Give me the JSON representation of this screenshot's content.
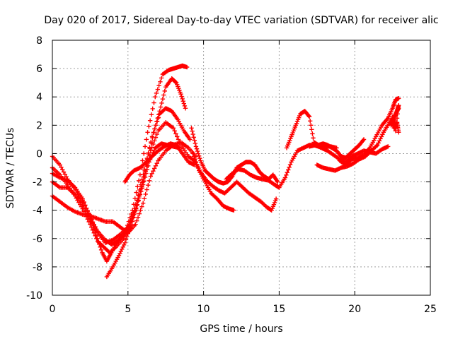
{
  "chart_data": {
    "type": "scatter",
    "title": "Day 020 of 2017, Sidereal Day-to-day VTEC variation (SDTVAR) for receiver alic",
    "xlabel": "GPS time / hours",
    "ylabel": "SDTVAR / TECUs",
    "xlim": [
      0,
      25
    ],
    "ylim": [
      -10,
      8
    ],
    "xticks": [
      0,
      5,
      10,
      15,
      20,
      25
    ],
    "yticks": [
      -10,
      -8,
      -6,
      -4,
      -2,
      0,
      2,
      4,
      6,
      8
    ],
    "grid": true,
    "marker": "+",
    "color": "#ff0000",
    "series": [
      {
        "x": [
          0.0,
          0.5,
          1.0,
          1.5,
          2.0,
          2.5,
          2.9,
          3.3,
          3.6,
          3.9,
          4.3,
          4.8,
          5.3,
          5.8,
          6.3,
          6.8,
          7.3,
          7.7,
          8.0,
          8.3,
          8.6,
          8.9
        ],
        "y": [
          -0.2,
          -0.8,
          -1.8,
          -2.5,
          -3.3,
          -4.4,
          -5.8,
          -7.0,
          -7.6,
          -7.0,
          -6.2,
          -5.6,
          -4.0,
          -1.5,
          1.5,
          4.0,
          5.6,
          5.9,
          6.0,
          6.1,
          6.2,
          6.1
        ]
      },
      {
        "x": [
          0.0,
          0.5,
          1.0,
          1.5,
          2.0,
          2.5,
          3.0,
          3.4,
          3.8,
          4.2,
          4.7,
          5.2,
          5.7,
          6.2,
          6.7,
          7.1,
          7.5,
          7.9,
          8.2,
          8.5,
          8.8
        ],
        "y": [
          -1.0,
          -1.5,
          -2.2,
          -3.0,
          -3.9,
          -5.0,
          -6.2,
          -6.6,
          -7.0,
          -6.6,
          -6.0,
          -5.1,
          -3.3,
          -0.8,
          1.5,
          3.0,
          4.7,
          5.3,
          5.0,
          4.2,
          3.2
        ]
      },
      {
        "x": [
          0.0,
          0.5,
          1.0,
          1.5,
          2.0,
          2.5,
          3.0,
          3.5,
          3.9,
          4.3,
          4.7,
          5.1,
          5.6,
          6.1,
          6.6,
          7.1,
          7.5,
          7.9,
          8.3,
          8.7,
          9.1
        ],
        "y": [
          -1.4,
          -1.7,
          -1.9,
          -2.4,
          -3.2,
          -4.5,
          -5.5,
          -6.1,
          -6.4,
          -6.2,
          -5.8,
          -5.0,
          -3.3,
          -1.1,
          1.2,
          2.8,
          3.2,
          3.0,
          2.4,
          1.6,
          1.0
        ]
      },
      {
        "x": [
          0.0,
          0.5,
          1.0,
          1.5,
          2.0,
          2.5,
          3.0,
          3.5,
          4.0,
          4.5,
          5.0,
          5.5,
          6.0,
          6.5,
          7.0,
          7.5,
          8.0,
          8.5,
          9.0,
          9.5
        ],
        "y": [
          -2.0,
          -2.4,
          -2.4,
          -2.9,
          -3.5,
          -4.6,
          -5.6,
          -6.3,
          -6.1,
          -5.7,
          -5.2,
          -4.0,
          -2.0,
          0.2,
          1.6,
          2.2,
          1.8,
          0.6,
          -0.2,
          -0.6
        ]
      },
      {
        "x": [
          0.0,
          0.5,
          1.0,
          1.5,
          2.0,
          2.5,
          3.0,
          3.5,
          4.0,
          4.5,
          5.0,
          5.5,
          6.0,
          6.5,
          7.0,
          7.5,
          8.0,
          8.5,
          9.0,
          9.5
        ],
        "y": [
          -3.0,
          -3.4,
          -3.8,
          -4.1,
          -4.3,
          -4.4,
          -4.6,
          -4.8,
          -4.8,
          -5.2,
          -5.6,
          -5.0,
          -3.5,
          -1.6,
          -0.5,
          0.2,
          0.6,
          0.8,
          0.4,
          -0.2
        ]
      },
      {
        "x": [
          3.6,
          4.0,
          4.4,
          4.8,
          5.2,
          5.6,
          6.0,
          6.4,
          6.8,
          7.2,
          7.6,
          8.0,
          8.4
        ],
        "y": [
          -8.7,
          -8.0,
          -7.2,
          -6.3,
          -5.0,
          -3.6,
          -2.2,
          -0.6,
          0.4,
          0.7,
          0.6,
          0.5,
          0.4
        ]
      },
      {
        "x": [
          4.8,
          5.1,
          5.4,
          5.8,
          6.2,
          6.6,
          7.0,
          7.4,
          7.8,
          8.2,
          8.6,
          9.0,
          9.4
        ],
        "y": [
          -2.0,
          -1.5,
          -1.2,
          -1.0,
          -0.6,
          -0.2,
          0.2,
          0.5,
          0.7,
          0.6,
          0.0,
          -0.6,
          -0.8
        ]
      },
      {
        "x": [
          9.2,
          9.5,
          9.8,
          10.1,
          10.4,
          10.7,
          11.0,
          11.3,
          11.6,
          11.9,
          12.2,
          12.5,
          12.8,
          13.1,
          13.4,
          13.7,
          14.0,
          14.3,
          14.6,
          14.9
        ],
        "y": [
          1.8,
          0.5,
          -0.5,
          -1.2,
          -1.5,
          -1.8,
          -2.0,
          -2.1,
          -2.0,
          -1.6,
          -1.0,
          -0.8,
          -0.6,
          -0.6,
          -0.8,
          -1.3,
          -1.6,
          -1.8,
          -1.5,
          -2.0
        ]
      },
      {
        "x": [
          9.3,
          9.7,
          10.1,
          10.5,
          10.9,
          11.3,
          11.7,
          12.0
        ],
        "y": [
          0.0,
          -1.2,
          -2.0,
          -2.8,
          -3.2,
          -3.7,
          -3.9,
          -4.0
        ]
      },
      {
        "x": [
          9.4,
          9.8,
          10.2,
          10.6,
          11.0,
          11.4,
          11.8,
          12.2,
          12.6,
          13.0,
          13.4,
          13.8,
          14.2,
          14.5,
          14.8
        ],
        "y": [
          -0.5,
          -1.3,
          -1.9,
          -2.3,
          -2.6,
          -2.8,
          -2.4,
          -2.0,
          -2.4,
          -2.8,
          -3.1,
          -3.4,
          -3.8,
          -4.0,
          -3.2
        ]
      },
      {
        "x": [
          11.5,
          11.9,
          12.3,
          12.7,
          13.1,
          13.5,
          13.9,
          14.3,
          14.7,
          15.0,
          15.4,
          15.8,
          16.2,
          16.6,
          17.0,
          17.3,
          17.6,
          18.0,
          18.4,
          18.8
        ],
        "y": [
          -1.8,
          -1.4,
          -1.1,
          -1.2,
          -1.5,
          -1.7,
          -1.8,
          -1.9,
          -2.2,
          -2.4,
          -1.7,
          -0.6,
          0.2,
          0.4,
          0.6,
          0.6,
          0.5,
          0.5,
          0.5,
          0.4
        ]
      },
      {
        "x": [
          15.5,
          15.8,
          16.1,
          16.4,
          16.7,
          17.0,
          17.3,
          17.6,
          17.9,
          18.2,
          18.5,
          18.8,
          19.1,
          19.4,
          19.7,
          20.0,
          20.3,
          20.6
        ],
        "y": [
          0.4,
          1.2,
          2.0,
          2.8,
          3.0,
          2.6,
          0.8,
          0.6,
          0.7,
          0.6,
          0.4,
          0.2,
          -0.2,
          -0.3,
          0.0,
          0.3,
          0.6,
          1.0
        ]
      },
      {
        "x": [
          17.0,
          17.4,
          17.8,
          18.2,
          18.6,
          19.0,
          19.4,
          19.8,
          20.2,
          20.6,
          21.0,
          21.4,
          21.8,
          22.2
        ],
        "y": [
          0.5,
          0.6,
          0.4,
          0.2,
          -0.1,
          -0.4,
          -0.6,
          -0.2,
          0.0,
          0.2,
          0.1,
          0.0,
          0.3,
          0.5
        ]
      },
      {
        "x": [
          17.5,
          17.9,
          18.3,
          18.7,
          19.1,
          19.5,
          19.9,
          20.3,
          20.7,
          21.1,
          21.5,
          21.9,
          22.3,
          22.7,
          22.9
        ],
        "y": [
          -0.8,
          -1.0,
          -1.1,
          -1.2,
          -1.0,
          -0.9,
          -0.7,
          -0.4,
          -0.2,
          0.2,
          0.6,
          1.5,
          2.2,
          2.8,
          3.2
        ]
      },
      {
        "x": [
          19.0,
          19.4,
          19.8,
          20.2,
          20.6,
          21.0,
          21.4,
          21.8,
          22.2,
          22.5,
          22.7,
          22.9
        ],
        "y": [
          -0.5,
          -0.8,
          -0.4,
          -0.3,
          -0.1,
          0.4,
          1.2,
          2.0,
          2.5,
          3.2,
          3.8,
          3.9
        ]
      },
      {
        "x": [
          22.4,
          22.6,
          22.8,
          22.9,
          22.7,
          22.5,
          22.6,
          22.8,
          22.9
        ],
        "y": [
          2.0,
          2.4,
          3.0,
          3.4,
          1.6,
          2.6,
          1.8,
          2.2,
          1.5
        ]
      }
    ]
  }
}
